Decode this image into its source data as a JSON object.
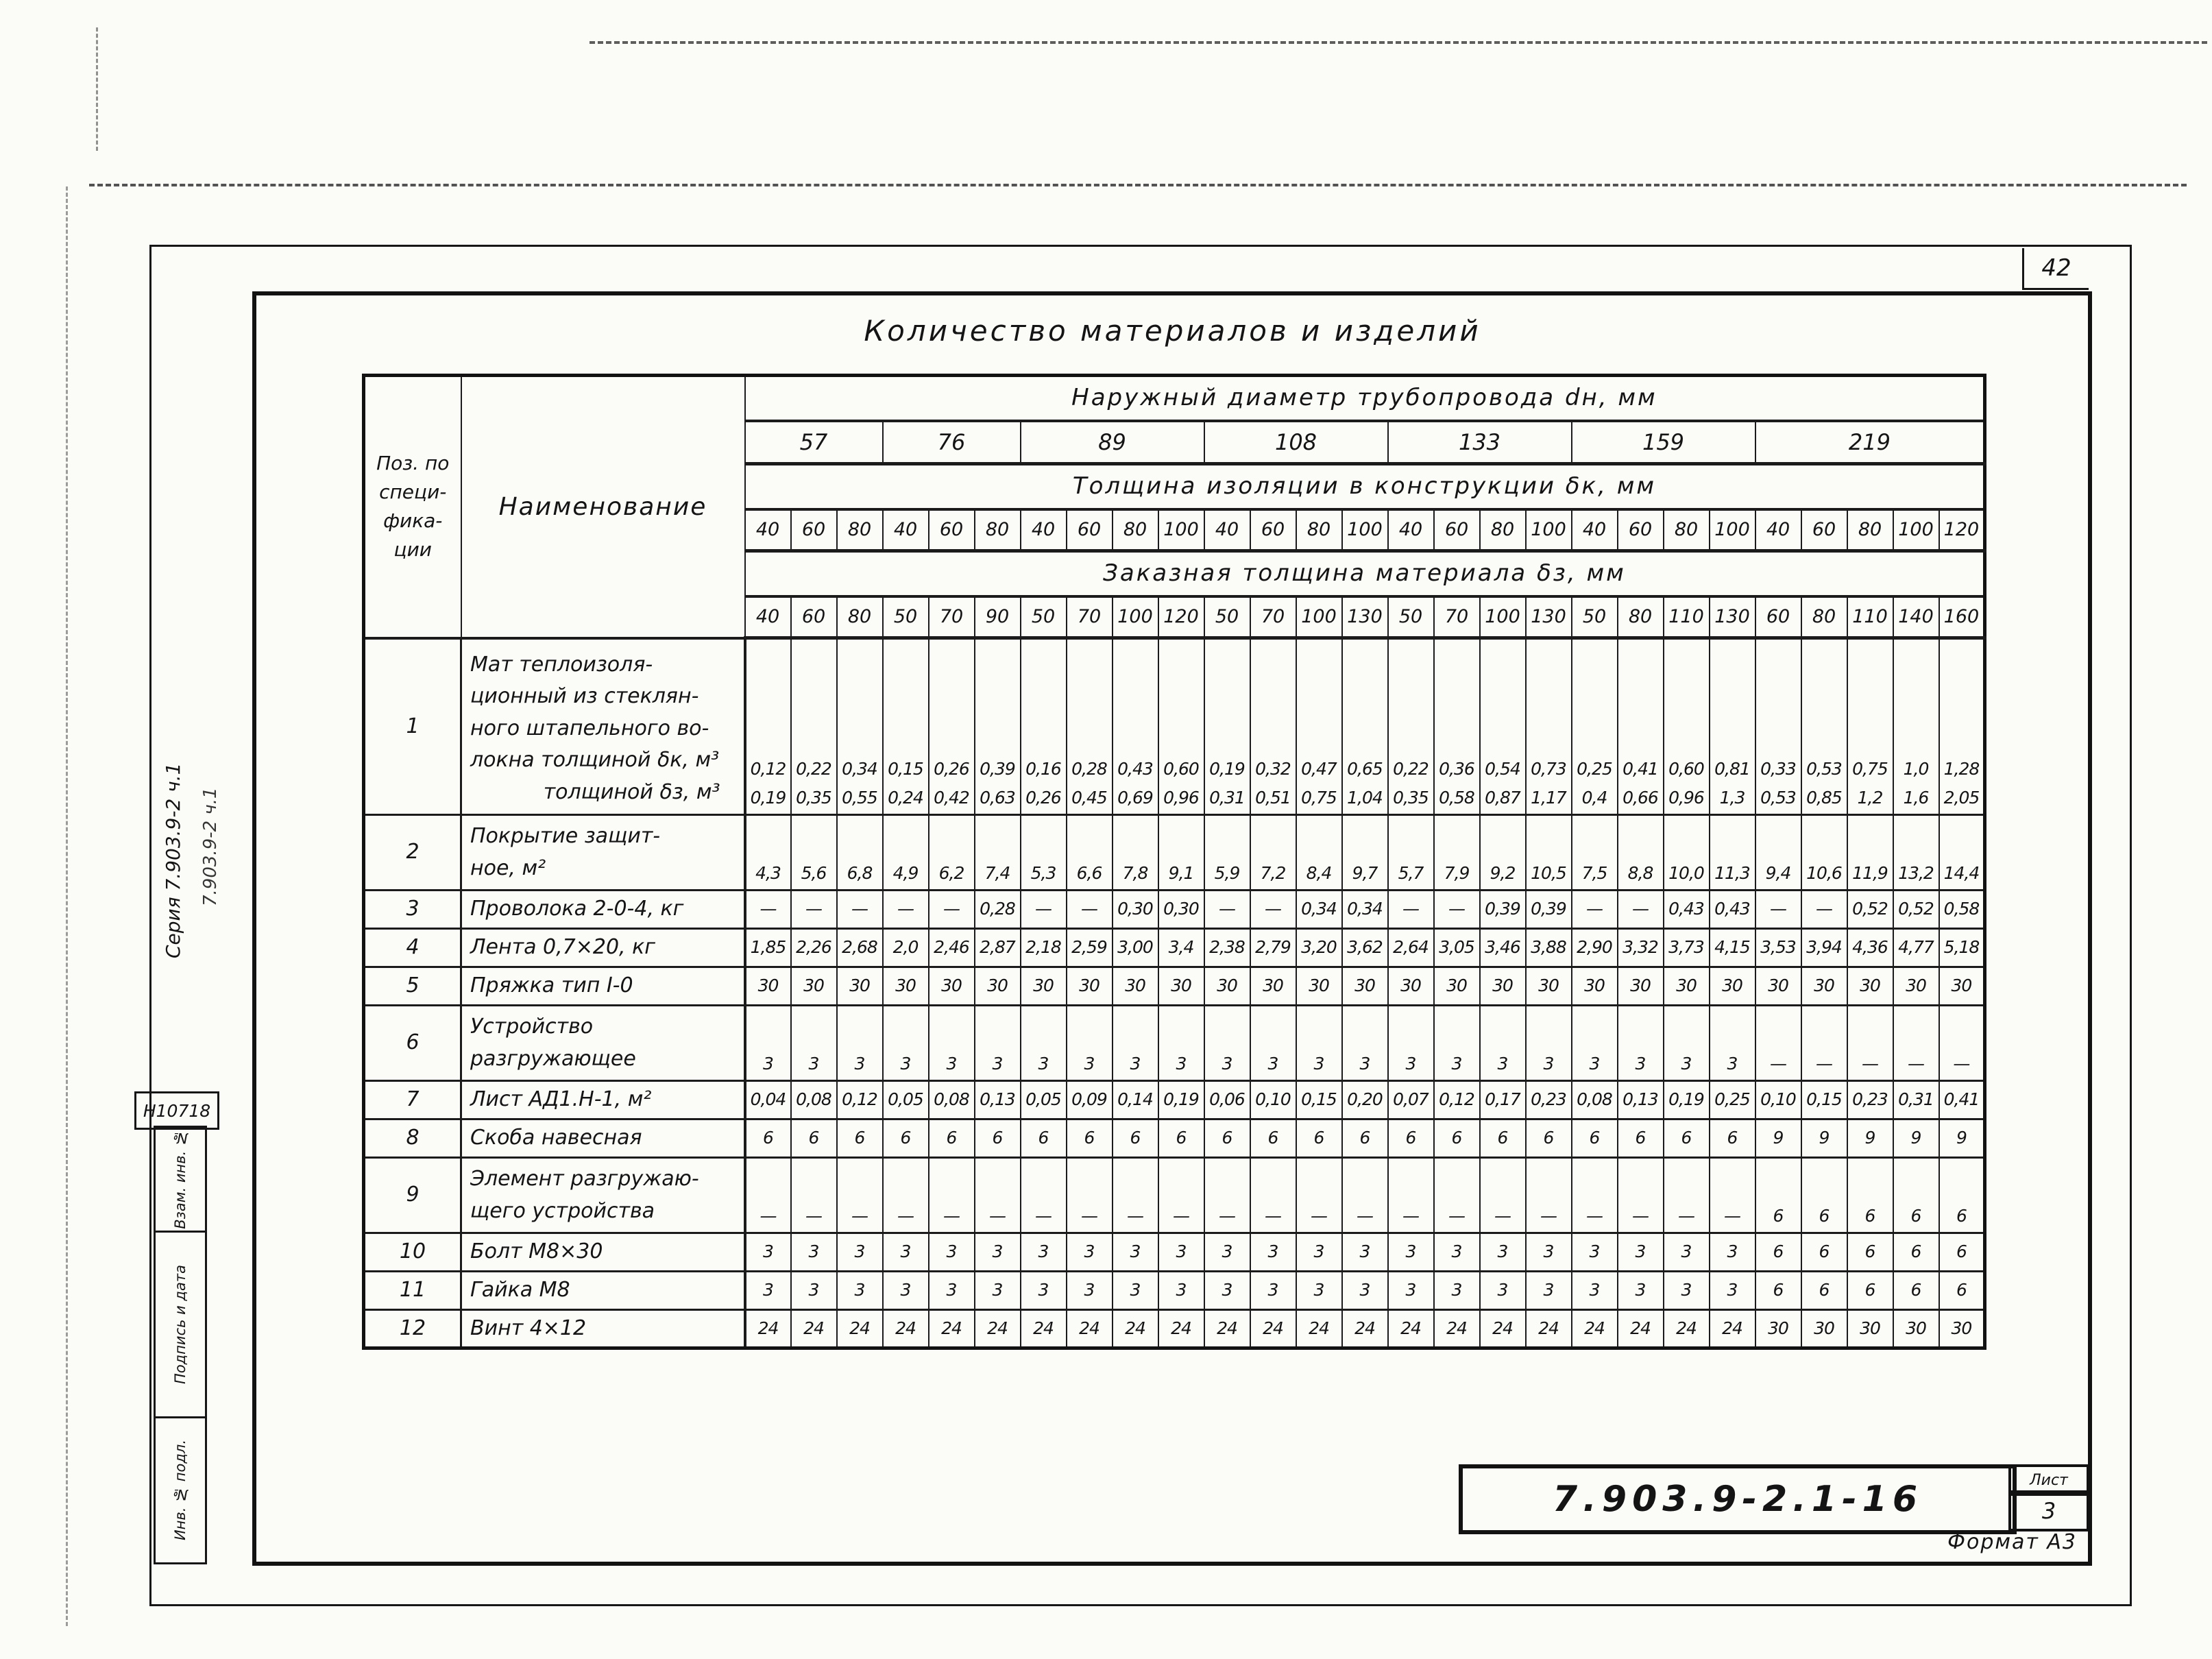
{
  "page": {
    "number": "42"
  },
  "sidebar": {
    "series_label": "Серия 7.903.9-2 ч.1",
    "series_note": "7.903.9-2 ч.1",
    "inv_number": "Н10718",
    "stamp_labels": [
      "Взам. инв. №",
      "Подпись и дата",
      "Инв. № подл."
    ]
  },
  "titleblock": {
    "doc_number": "7.903.9-2.1-16",
    "sheet_label": "Лист",
    "sheet_number": "3",
    "format_label": "Формат А3"
  },
  "table": {
    "title": "Количество материалов и изделий",
    "pos_header_lines": [
      "Поз. по",
      "специ-",
      "фика-",
      "ции"
    ],
    "name_header": "Наименование",
    "diameter_header": "Наружный диаметр трубопровода dн, мм",
    "diameters": [
      {
        "label": "57",
        "span": 3
      },
      {
        "label": "76",
        "span": 3
      },
      {
        "label": "89",
        "span": 4
      },
      {
        "label": "108",
        "span": 4
      },
      {
        "label": "133",
        "span": 4
      },
      {
        "label": "159",
        "span": 4
      },
      {
        "label": "219",
        "span": 5
      }
    ],
    "insulation_header": "Толщина изоляции в конструкции δк, мм",
    "insulation_values": [
      "40",
      "60",
      "80",
      "40",
      "60",
      "80",
      "40",
      "60",
      "80",
      "100",
      "40",
      "60",
      "80",
      "100",
      "40",
      "60",
      "80",
      "100",
      "40",
      "60",
      "80",
      "100",
      "40",
      "60",
      "80",
      "100",
      "120"
    ],
    "ordered_header": "Заказная толщина материала δз, мм",
    "ordered_values": [
      "40",
      "60",
      "80",
      "50",
      "70",
      "90",
      "50",
      "70",
      "100",
      "120",
      "50",
      "70",
      "100",
      "130",
      "50",
      "70",
      "100",
      "130",
      "50",
      "80",
      "110",
      "130",
      "60",
      "80",
      "110",
      "140",
      "160"
    ],
    "rows": [
      {
        "pos": "1",
        "name_lines": [
          "Мат теплоизоля-",
          "ционный из стеклян-",
          "ного штапельного во-",
          "локна толщиной δк, м³",
          "толщиной δз, м³"
        ],
        "values_top": [
          "0,12",
          "0,22",
          "0,34",
          "0,15",
          "0,26",
          "0,39",
          "0,16",
          "0,28",
          "0,43",
          "0,60",
          "0,19",
          "0,32",
          "0,47",
          "0,65",
          "0,22",
          "0,36",
          "0,54",
          "0,73",
          "0,25",
          "0,41",
          "0,60",
          "0,81",
          "0,33",
          "0,53",
          "0,75",
          "1,0",
          "1,28"
        ],
        "values_bottom": [
          "0,19",
          "0,35",
          "0,55",
          "0,24",
          "0,42",
          "0,63",
          "0,26",
          "0,45",
          "0,69",
          "0,96",
          "0,31",
          "0,51",
          "0,75",
          "1,04",
          "0,35",
          "0,58",
          "0,87",
          "1,17",
          "0,4",
          "0,66",
          "0,96",
          "1,3",
          "0,53",
          "0,85",
          "1,2",
          "1,6",
          "2,05"
        ]
      },
      {
        "pos": "2",
        "name_lines": [
          "Покрытие защит-",
          "ное, м²"
        ],
        "values": [
          "4,3",
          "5,6",
          "6,8",
          "4,9",
          "6,2",
          "7,4",
          "5,3",
          "6,6",
          "7,8",
          "9,1",
          "5,9",
          "7,2",
          "8,4",
          "9,7",
          "5,7",
          "7,9",
          "9,2",
          "10,5",
          "7,5",
          "8,8",
          "10,0",
          "11,3",
          "9,4",
          "10,6",
          "11,9",
          "13,2",
          "14,4"
        ]
      },
      {
        "pos": "3",
        "name_lines": [
          "Проволока 2-0-4, кг"
        ],
        "values": [
          "—",
          "—",
          "—",
          "—",
          "—",
          "0,28",
          "—",
          "—",
          "0,30",
          "0,30",
          "—",
          "—",
          "0,34",
          "0,34",
          "—",
          "—",
          "0,39",
          "0,39",
          "—",
          "—",
          "0,43",
          "0,43",
          "—",
          "—",
          "0,52",
          "0,52",
          "0,58"
        ]
      },
      {
        "pos": "4",
        "name_lines": [
          "Лента 0,7×20,  кг"
        ],
        "values": [
          "1,85",
          "2,26",
          "2,68",
          "2,0",
          "2,46",
          "2,87",
          "2,18",
          "2,59",
          "3,00",
          "3,4",
          "2,38",
          "2,79",
          "3,20",
          "3,62",
          "2,64",
          "3,05",
          "3,46",
          "3,88",
          "2,90",
          "3,32",
          "3,73",
          "4,15",
          "3,53",
          "3,94",
          "4,36",
          "4,77",
          "5,18"
        ]
      },
      {
        "pos": "5",
        "name_lines": [
          "Пряжка тип I-0"
        ],
        "values": [
          "30",
          "30",
          "30",
          "30",
          "30",
          "30",
          "30",
          "30",
          "30",
          "30",
          "30",
          "30",
          "30",
          "30",
          "30",
          "30",
          "30",
          "30",
          "30",
          "30",
          "30",
          "30",
          "30",
          "30",
          "30",
          "30",
          "30"
        ]
      },
      {
        "pos": "6",
        "name_lines": [
          "Устройство",
          "разгружающее"
        ],
        "values": [
          "3",
          "3",
          "3",
          "3",
          "3",
          "3",
          "3",
          "3",
          "3",
          "3",
          "3",
          "3",
          "3",
          "3",
          "3",
          "3",
          "3",
          "3",
          "3",
          "3",
          "3",
          "3",
          "—",
          "—",
          "—",
          "—",
          "—"
        ]
      },
      {
        "pos": "7",
        "name_lines": [
          "Лист АД1.Н-1, м²"
        ],
        "values": [
          "0,04",
          "0,08",
          "0,12",
          "0,05",
          "0,08",
          "0,13",
          "0,05",
          "0,09",
          "0,14",
          "0,19",
          "0,06",
          "0,10",
          "0,15",
          "0,20",
          "0,07",
          "0,12",
          "0,17",
          "0,23",
          "0,08",
          "0,13",
          "0,19",
          "0,25",
          "0,10",
          "0,15",
          "0,23",
          "0,31",
          "0,41"
        ]
      },
      {
        "pos": "8",
        "name_lines": [
          "Скоба навесная"
        ],
        "values": [
          "6",
          "6",
          "6",
          "6",
          "6",
          "6",
          "6",
          "6",
          "6",
          "6",
          "6",
          "6",
          "6",
          "6",
          "6",
          "6",
          "6",
          "6",
          "6",
          "6",
          "6",
          "6",
          "9",
          "9",
          "9",
          "9",
          "9"
        ]
      },
      {
        "pos": "9",
        "name_lines": [
          "Элемент разгружаю-",
          "щего устройства"
        ],
        "values": [
          "—",
          "—",
          "—",
          "—",
          "—",
          "—",
          "—",
          "—",
          "—",
          "—",
          "—",
          "—",
          "—",
          "—",
          "—",
          "—",
          "—",
          "—",
          "—",
          "—",
          "—",
          "—",
          "6",
          "6",
          "6",
          "6",
          "6"
        ]
      },
      {
        "pos": "10",
        "name_lines": [
          "Болт М8×30"
        ],
        "values": [
          "3",
          "3",
          "3",
          "3",
          "3",
          "3",
          "3",
          "3",
          "3",
          "3",
          "3",
          "3",
          "3",
          "3",
          "3",
          "3",
          "3",
          "3",
          "3",
          "3",
          "3",
          "3",
          "6",
          "6",
          "6",
          "6",
          "6"
        ]
      },
      {
        "pos": "11",
        "name_lines": [
          "Гайка М8"
        ],
        "values": [
          "3",
          "3",
          "3",
          "3",
          "3",
          "3",
          "3",
          "3",
          "3",
          "3",
          "3",
          "3",
          "3",
          "3",
          "3",
          "3",
          "3",
          "3",
          "3",
          "3",
          "3",
          "3",
          "6",
          "6",
          "6",
          "6",
          "6"
        ]
      },
      {
        "pos": "12",
        "name_lines": [
          "Винт 4×12"
        ],
        "values": [
          "24",
          "24",
          "24",
          "24",
          "24",
          "24",
          "24",
          "24",
          "24",
          "24",
          "24",
          "24",
          "24",
          "24",
          "24",
          "24",
          "24",
          "24",
          "24",
          "24",
          "24",
          "24",
          "30",
          "30",
          "30",
          "30",
          "30"
        ]
      }
    ]
  }
}
